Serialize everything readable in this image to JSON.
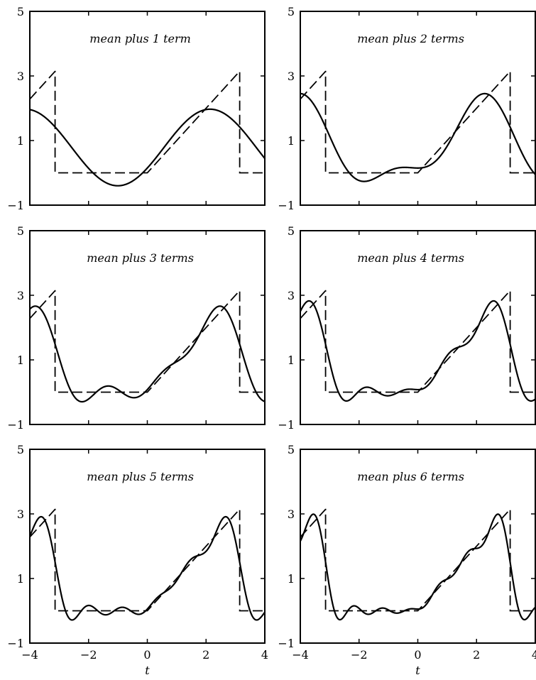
{
  "chart_data": [
    {
      "type": "line",
      "title": "mean plus 1 term",
      "xlim": [
        -4,
        4
      ],
      "ylim": [
        -1,
        5
      ],
      "yticks": [
        "-1",
        "1",
        "3",
        "5"
      ],
      "xticks": [],
      "xlabel": "",
      "terms": 1,
      "grid": false
    },
    {
      "type": "line",
      "title": "mean plus 2 terms",
      "xlim": [
        -4,
        4
      ],
      "ylim": [
        -1,
        5
      ],
      "yticks": [
        "-1",
        "1",
        "3",
        "5"
      ],
      "xticks": [],
      "xlabel": "",
      "terms": 2,
      "grid": false
    },
    {
      "type": "line",
      "title": "mean plus 3 terms",
      "xlim": [
        -4,
        4
      ],
      "ylim": [
        -1,
        5
      ],
      "yticks": [
        "-1",
        "1",
        "3",
        "5"
      ],
      "xticks": [],
      "xlabel": "",
      "terms": 3,
      "grid": false
    },
    {
      "type": "line",
      "title": "mean plus 4 terms",
      "xlim": [
        -4,
        4
      ],
      "ylim": [
        -1,
        5
      ],
      "yticks": [
        "-1",
        "1",
        "3",
        "5"
      ],
      "xticks": [],
      "xlabel": "",
      "terms": 4,
      "grid": false
    },
    {
      "type": "line",
      "title": "mean plus 5 terms",
      "xlim": [
        -4,
        4
      ],
      "ylim": [
        -1,
        5
      ],
      "yticks": [
        "-1",
        "1",
        "3",
        "5"
      ],
      "xticks": [
        "-4",
        "-2",
        "0",
        "2",
        "4"
      ],
      "xlabel": "t",
      "terms": 5,
      "grid": false
    },
    {
      "type": "line",
      "title": "mean plus 6 terms",
      "xlim": [
        -4,
        4
      ],
      "ylim": [
        -1,
        5
      ],
      "yticks": [
        "-1",
        "1",
        "3",
        "5"
      ],
      "xticks": [
        "-4",
        "-2",
        "0",
        "2",
        "4"
      ],
      "xlabel": "t",
      "terms": 6,
      "grid": false
    }
  ]
}
